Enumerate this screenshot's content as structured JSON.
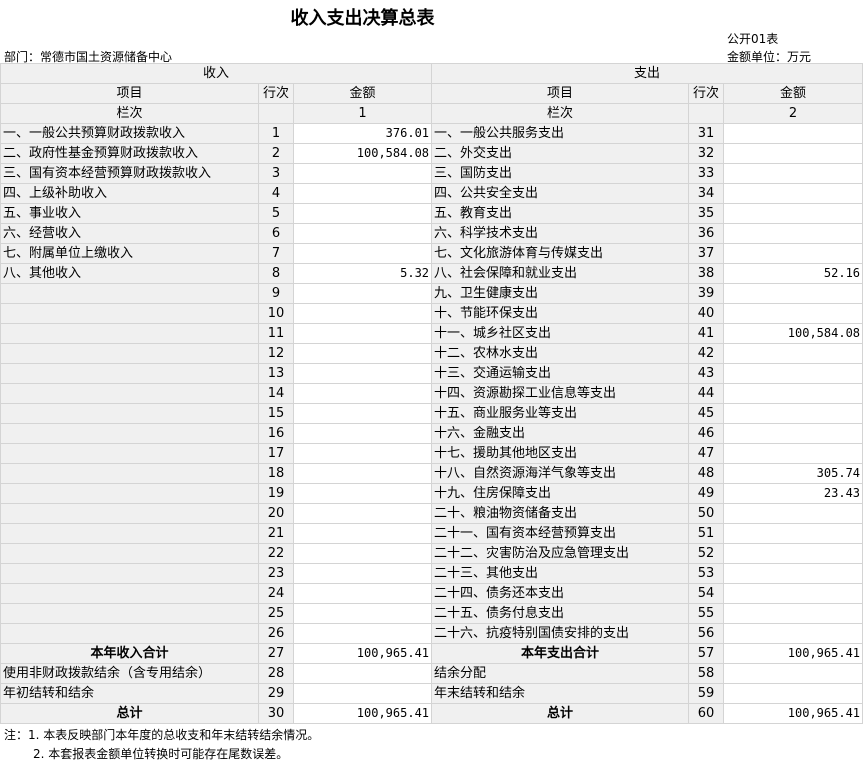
{
  "title": "收入支出决算总表",
  "form_no": "公开01表",
  "unit": "金额单位：万元",
  "department": "部门：常德市国土资源储备中心",
  "headers": {
    "income": "收入",
    "expense": "支出",
    "item": "项目",
    "row_no": "行次",
    "amount": "金额",
    "col_label": "栏次",
    "income_col": "1",
    "expense_col": "2"
  },
  "income_rows": [
    {
      "item": "一、一般公共预算财政拨款收入",
      "no": "1",
      "amount": "376.01"
    },
    {
      "item": "二、政府性基金预算财政拨款收入",
      "no": "2",
      "amount": "100,584.08"
    },
    {
      "item": "三、国有资本经营预算财政拨款收入",
      "no": "3",
      "amount": ""
    },
    {
      "item": "四、上级补助收入",
      "no": "4",
      "amount": ""
    },
    {
      "item": "五、事业收入",
      "no": "5",
      "amount": ""
    },
    {
      "item": "六、经营收入",
      "no": "6",
      "amount": ""
    },
    {
      "item": "七、附属单位上缴收入",
      "no": "7",
      "amount": ""
    },
    {
      "item": "八、其他收入",
      "no": "8",
      "amount": "5.32"
    },
    {
      "item": "",
      "no": "9",
      "amount": ""
    },
    {
      "item": "",
      "no": "10",
      "amount": ""
    },
    {
      "item": "",
      "no": "11",
      "amount": ""
    },
    {
      "item": "",
      "no": "12",
      "amount": ""
    },
    {
      "item": "",
      "no": "13",
      "amount": ""
    },
    {
      "item": "",
      "no": "14",
      "amount": ""
    },
    {
      "item": "",
      "no": "15",
      "amount": ""
    },
    {
      "item": "",
      "no": "16",
      "amount": ""
    },
    {
      "item": "",
      "no": "17",
      "amount": ""
    },
    {
      "item": "",
      "no": "18",
      "amount": ""
    },
    {
      "item": "",
      "no": "19",
      "amount": ""
    },
    {
      "item": "",
      "no": "20",
      "amount": ""
    },
    {
      "item": "",
      "no": "21",
      "amount": ""
    },
    {
      "item": "",
      "no": "22",
      "amount": ""
    },
    {
      "item": "",
      "no": "23",
      "amount": ""
    },
    {
      "item": "",
      "no": "24",
      "amount": ""
    },
    {
      "item": "",
      "no": "25",
      "amount": ""
    },
    {
      "item": "",
      "no": "26",
      "amount": ""
    },
    {
      "item": "本年收入合计",
      "no": "27",
      "amount": "100,965.41",
      "bold": true
    },
    {
      "item": "使用非财政拨款结余（含专用结余）",
      "no": "28",
      "amount": ""
    },
    {
      "item": "年初结转和结余",
      "no": "29",
      "amount": ""
    },
    {
      "item": "总计",
      "no": "30",
      "amount": "100,965.41",
      "bold": true
    }
  ],
  "expense_rows": [
    {
      "item": "一、一般公共服务支出",
      "no": "31",
      "amount": ""
    },
    {
      "item": "二、外交支出",
      "no": "32",
      "amount": ""
    },
    {
      "item": "三、国防支出",
      "no": "33",
      "amount": ""
    },
    {
      "item": "四、公共安全支出",
      "no": "34",
      "amount": ""
    },
    {
      "item": "五、教育支出",
      "no": "35",
      "amount": ""
    },
    {
      "item": "六、科学技术支出",
      "no": "36",
      "amount": ""
    },
    {
      "item": "七、文化旅游体育与传媒支出",
      "no": "37",
      "amount": ""
    },
    {
      "item": "八、社会保障和就业支出",
      "no": "38",
      "amount": "52.16"
    },
    {
      "item": "九、卫生健康支出",
      "no": "39",
      "amount": ""
    },
    {
      "item": "十、节能环保支出",
      "no": "40",
      "amount": ""
    },
    {
      "item": "十一、城乡社区支出",
      "no": "41",
      "amount": "100,584.08"
    },
    {
      "item": "十二、农林水支出",
      "no": "42",
      "amount": ""
    },
    {
      "item": "十三、交通运输支出",
      "no": "43",
      "amount": ""
    },
    {
      "item": "十四、资源勘探工业信息等支出",
      "no": "44",
      "amount": ""
    },
    {
      "item": "十五、商业服务业等支出",
      "no": "45",
      "amount": ""
    },
    {
      "item": "十六、金融支出",
      "no": "46",
      "amount": ""
    },
    {
      "item": "十七、援助其他地区支出",
      "no": "47",
      "amount": ""
    },
    {
      "item": "十八、自然资源海洋气象等支出",
      "no": "48",
      "amount": "305.74"
    },
    {
      "item": "十九、住房保障支出",
      "no": "49",
      "amount": "23.43"
    },
    {
      "item": "二十、粮油物资储备支出",
      "no": "50",
      "amount": ""
    },
    {
      "item": "二十一、国有资本经营预算支出",
      "no": "51",
      "amount": ""
    },
    {
      "item": "二十二、灾害防治及应急管理支出",
      "no": "52",
      "amount": ""
    },
    {
      "item": "二十三、其他支出",
      "no": "53",
      "amount": ""
    },
    {
      "item": "二十四、债务还本支出",
      "no": "54",
      "amount": ""
    },
    {
      "item": "二十五、债务付息支出",
      "no": "55",
      "amount": ""
    },
    {
      "item": "二十六、抗疫特别国债安排的支出",
      "no": "56",
      "amount": ""
    },
    {
      "item": "本年支出合计",
      "no": "57",
      "amount": "100,965.41",
      "bold": true
    },
    {
      "item": "结余分配",
      "no": "58",
      "amount": ""
    },
    {
      "item": "年末结转和结余",
      "no": "59",
      "amount": ""
    },
    {
      "item": "总计",
      "no": "60",
      "amount": "100,965.41",
      "bold": true
    }
  ],
  "notes": [
    "注：1. 本表反映部门本年度的总收支和年末结转结余情况。",
    "2. 本套报表金额单位转换时可能存在尾数误差。"
  ]
}
